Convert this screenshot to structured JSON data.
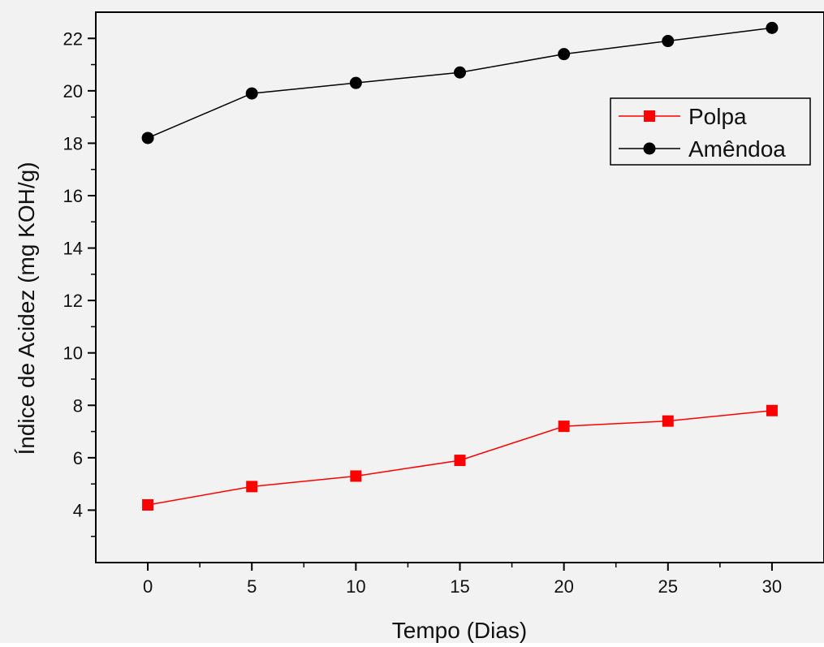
{
  "chart_data": {
    "type": "line",
    "title": "",
    "xlabel": "Tempo (Dias)",
    "ylabel": "Índice de Acidez (mg KOH/g)",
    "x": [
      0,
      5,
      10,
      15,
      20,
      25,
      30
    ],
    "xlim": [
      -2.5,
      32.5
    ],
    "ylim": [
      2,
      23
    ],
    "xticks": [
      0,
      5,
      10,
      15,
      20,
      25,
      30
    ],
    "yticks": [
      4,
      6,
      8,
      10,
      12,
      14,
      16,
      18,
      20,
      22
    ],
    "grid": false,
    "legend_position": "top-right",
    "series": [
      {
        "name": "Polpa",
        "color": "#ff0000",
        "marker": "square",
        "values": [
          4.2,
          4.9,
          5.3,
          5.9,
          7.2,
          7.4,
          7.8
        ]
      },
      {
        "name": "Amêndoa",
        "color": "#000000",
        "marker": "circle",
        "values": [
          18.2,
          19.9,
          20.3,
          20.7,
          21.4,
          21.9,
          22.4
        ]
      }
    ]
  }
}
